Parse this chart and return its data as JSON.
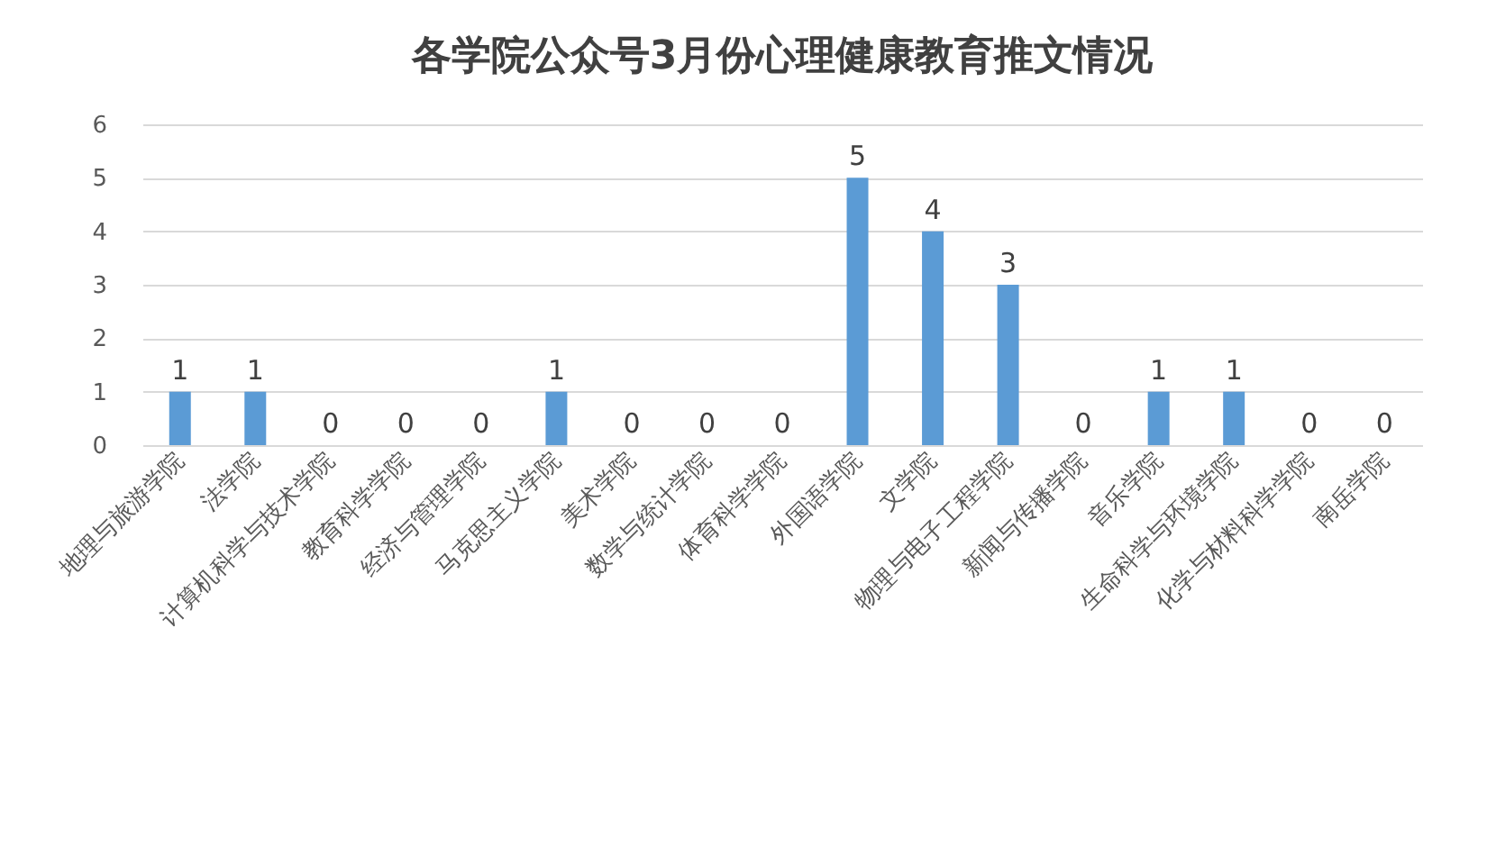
{
  "chart_data": {
    "type": "bar",
    "title": "各学院公众号3月份心理健康教育推文情况",
    "categories": [
      "地理与旅游学院",
      "法学院",
      "计算机科学与技术学院",
      "教育科学学院",
      "经济与管理学院",
      "马克思主义学院",
      "美术学院",
      "数学与统计学院",
      "体育科学学院",
      "外国语学院",
      "文学院",
      "物理与电子工程学院",
      "新闻与传播学院",
      "音乐学院",
      "生命科学与环境学院",
      "化学与材料科学学院",
      "南岳学院"
    ],
    "values": [
      1,
      1,
      0,
      0,
      0,
      1,
      0,
      0,
      0,
      5,
      4,
      3,
      0,
      1,
      1,
      0,
      0
    ],
    "color": "#5b9bd5",
    "ylim": [
      0,
      6
    ],
    "yticks": [
      0,
      1,
      2,
      3,
      4,
      5,
      6
    ],
    "grid": "y",
    "data_labels": true
  }
}
